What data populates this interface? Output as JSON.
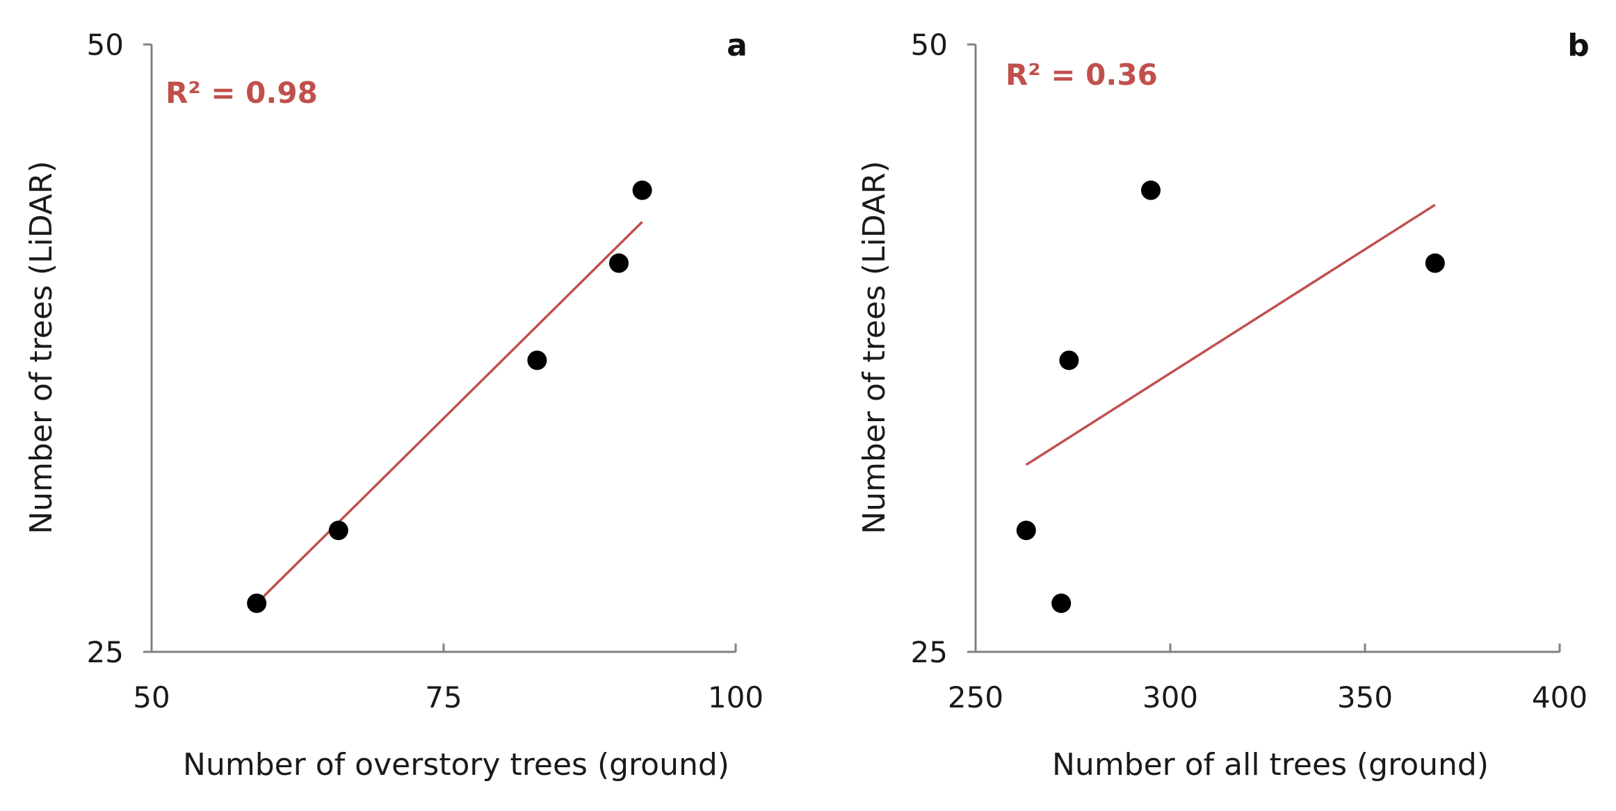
{
  "chart_data": [
    {
      "type": "scatter",
      "panel_label": "a",
      "xlabel": "Number of overstory trees (ground)",
      "ylabel": "Number of trees (LiDAR)",
      "xlim": [
        50,
        100
      ],
      "ylim": [
        25,
        50
      ],
      "xticks": [
        50,
        75,
        100
      ],
      "yticks": [
        25,
        50
      ],
      "annotation": "R² = 0.98",
      "points": [
        {
          "x": 59,
          "y": 27
        },
        {
          "x": 66,
          "y": 30
        },
        {
          "x": 83,
          "y": 37
        },
        {
          "x": 90,
          "y": 41
        },
        {
          "x": 92,
          "y": 44
        }
      ],
      "trendline": {
        "x": [
          59,
          92
        ],
        "y": [
          27,
          42.7
        ]
      },
      "point_color": "#000000",
      "trendline_color": "#c0504d",
      "grid": false
    },
    {
      "type": "scatter",
      "panel_label": "b",
      "xlabel": "Number of all trees (ground)",
      "ylabel": "Number of trees (LiDAR)",
      "xlim": [
        250,
        400
      ],
      "ylim": [
        25,
        50
      ],
      "xticks": [
        250,
        300,
        350,
        400
      ],
      "yticks": [
        25,
        50
      ],
      "annotation": "R² = 0.36",
      "points": [
        {
          "x": 263,
          "y": 30
        },
        {
          "x": 272,
          "y": 27
        },
        {
          "x": 274,
          "y": 37
        },
        {
          "x": 295,
          "y": 44
        },
        {
          "x": 368,
          "y": 41
        }
      ],
      "trendline": {
        "x": [
          263,
          368
        ],
        "y": [
          32.7,
          43.4
        ]
      },
      "point_color": "#000000",
      "trendline_color": "#c0504d",
      "grid": false
    }
  ]
}
